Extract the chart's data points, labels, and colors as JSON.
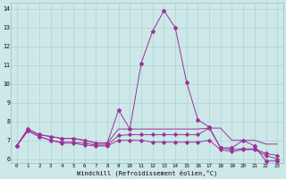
{
  "xlabel": "Windchill (Refroidissement éolien,°C)",
  "bg_color": "#cce8e8",
  "line_color": "#993399",
  "xlim": [
    -0.5,
    23.5
  ],
  "ylim": [
    5.8,
    14.3
  ],
  "yticks": [
    6,
    7,
    8,
    9,
    10,
    11,
    12,
    13,
    14
  ],
  "xticks": [
    0,
    1,
    2,
    3,
    4,
    5,
    6,
    7,
    8,
    9,
    10,
    11,
    12,
    13,
    14,
    15,
    16,
    17,
    18,
    19,
    20,
    21,
    22,
    23
  ],
  "series": [
    {
      "x": [
        0,
        1,
        2,
        3,
        4,
        5,
        6,
        7,
        8,
        9,
        10,
        11,
        12,
        13,
        14,
        15,
        16,
        17,
        18,
        19,
        20,
        21,
        22,
        23
      ],
      "y": [
        6.7,
        7.6,
        7.3,
        7.2,
        7.1,
        7.1,
        7.0,
        6.85,
        6.85,
        8.6,
        7.6,
        11.1,
        12.8,
        13.9,
        13.0,
        10.1,
        8.1,
        7.7,
        6.6,
        6.6,
        7.0,
        6.7,
        5.9,
        5.9
      ],
      "marker": "D",
      "ms": 2.0
    },
    {
      "x": [
        0,
        1,
        2,
        3,
        4,
        5,
        6,
        7,
        8,
        9,
        10,
        11,
        12,
        13,
        14,
        15,
        16,
        17,
        18,
        19,
        20,
        21,
        22,
        23
      ],
      "y": [
        6.7,
        7.6,
        7.3,
        7.2,
        7.1,
        7.1,
        7.0,
        6.85,
        6.85,
        7.6,
        7.6,
        7.6,
        7.6,
        7.6,
        7.6,
        7.6,
        7.6,
        7.65,
        7.65,
        7.0,
        7.0,
        7.0,
        6.8,
        6.8
      ],
      "marker": null,
      "ms": 0
    },
    {
      "x": [
        0,
        1,
        2,
        3,
        4,
        5,
        6,
        7,
        8,
        9,
        10,
        11,
        12,
        13,
        14,
        15,
        16,
        17,
        18,
        19,
        20,
        21,
        22,
        23
      ],
      "y": [
        6.7,
        7.5,
        7.2,
        7.0,
        6.9,
        6.9,
        6.85,
        6.75,
        6.75,
        7.25,
        7.3,
        7.3,
        7.3,
        7.3,
        7.3,
        7.3,
        7.3,
        7.65,
        6.6,
        6.5,
        6.55,
        6.55,
        6.3,
        6.2
      ],
      "marker": "D",
      "ms": 1.8
    },
    {
      "x": [
        0,
        1,
        2,
        3,
        4,
        5,
        6,
        7,
        8,
        9,
        10,
        11,
        12,
        13,
        14,
        15,
        16,
        17,
        18,
        19,
        20,
        21,
        22,
        23
      ],
      "y": [
        6.7,
        7.5,
        7.2,
        7.0,
        6.85,
        6.85,
        6.75,
        6.7,
        6.7,
        7.0,
        7.0,
        7.0,
        6.9,
        6.9,
        6.9,
        6.9,
        6.9,
        7.0,
        6.5,
        6.4,
        6.5,
        6.5,
        6.2,
        6.0
      ],
      "marker": "D",
      "ms": 1.8
    }
  ]
}
